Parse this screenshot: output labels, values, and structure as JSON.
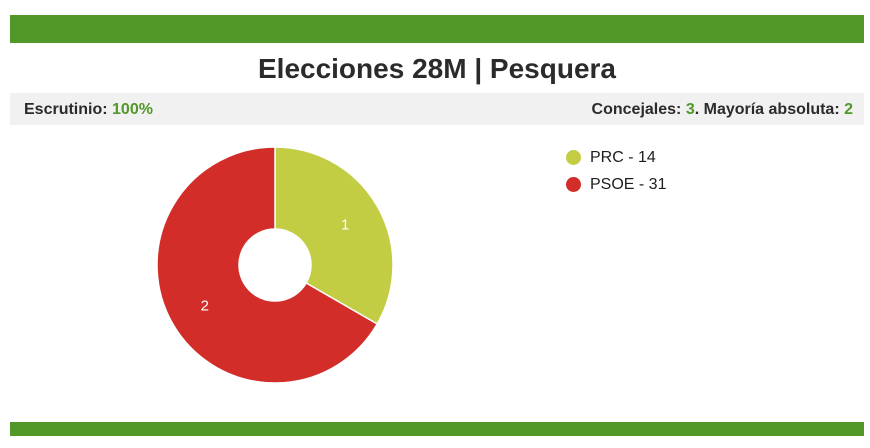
{
  "header": {
    "title": "Elecciones 28M | Pesquera"
  },
  "info": {
    "scrutiny_label": "Escrutinio:",
    "scrutiny_value": "100%",
    "councillors_label": "Concejales:",
    "councillors_value": "3",
    "majority_label": ". Mayoría absoluta:",
    "majority_value": "2"
  },
  "colors": {
    "brand_green": "#519829",
    "prc": "#c3cd44",
    "psoe": "#d22d28"
  },
  "legend": [
    {
      "label": "PRC - 14",
      "color": "#c3cd44"
    },
    {
      "label": "PSOE - 31",
      "color": "#d22d28"
    }
  ],
  "chart_data": {
    "type": "pie",
    "donut": true,
    "categories": [
      "PRC",
      "PSOE"
    ],
    "series": [
      {
        "values": [
          1,
          2
        ],
        "votes": [
          14,
          31
        ]
      }
    ],
    "slice_labels": [
      "1",
      "2"
    ],
    "colors": [
      "#c3cd44",
      "#d22d28"
    ],
    "legend_position": "right"
  }
}
